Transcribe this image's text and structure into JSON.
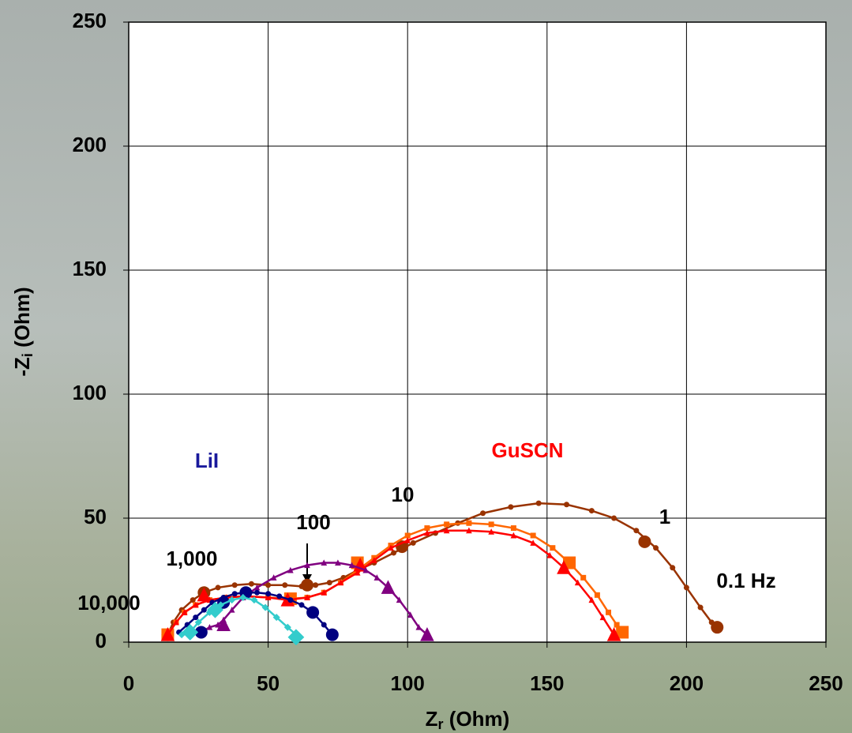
{
  "chart_data": {
    "type": "line",
    "x_label": [
      "Z",
      "r",
      " (Ohm)"
    ],
    "y_label": [
      "-Z",
      "i",
      " (Ohm)"
    ],
    "xlim": [
      0,
      250
    ],
    "ylim": [
      0,
      250
    ],
    "xticks": [
      0,
      50,
      100,
      150,
      200,
      250
    ],
    "yticks": [
      0,
      50,
      100,
      150,
      200,
      250
    ],
    "grid": true,
    "annotations": [
      {
        "text": "LiI",
        "color": "#1a1a9c"
      },
      {
        "text": "GuSCN",
        "color": "#ff0000"
      },
      {
        "text": "10",
        "color": "#000000"
      },
      {
        "text": "100",
        "color": "#000000"
      },
      {
        "text": "1,000",
        "color": "#000000"
      },
      {
        "text": "10,000",
        "color": "#000000"
      },
      {
        "text": "1",
        "color": "#000000"
      },
      {
        "text": "0.1 Hz",
        "color": "#000000"
      }
    ],
    "series": [
      {
        "color": "#993300",
        "marker": "circle",
        "x": [
          14,
          16,
          19,
          23,
          27,
          32,
          38,
          44,
          50,
          56,
          62,
          67,
          72,
          77,
          82,
          88,
          95,
          102,
          110,
          118,
          127,
          137,
          147,
          157,
          166,
          174,
          182,
          189,
          195,
          200,
          205,
          209,
          211
        ],
        "values": [
          3,
          8,
          13,
          17,
          20,
          22,
          23,
          23.5,
          23,
          23,
          22.5,
          23,
          24,
          26,
          29,
          32,
          36,
          40,
          44,
          48,
          52,
          54.5,
          56,
          55.5,
          53,
          50,
          45,
          38,
          30,
          22,
          14,
          8,
          6
        ],
        "marker_x": [
          14,
          27,
          64,
          98,
          185,
          211
        ],
        "marker_values": [
          3,
          20,
          23,
          38.5,
          40.5,
          6
        ]
      },
      {
        "color": "#ff6600",
        "marker": "square",
        "x": [
          14,
          17,
          20,
          24,
          29,
          35,
          42,
          50,
          58,
          64,
          70,
          76,
          82,
          88,
          94,
          100,
          107,
          114,
          122,
          130,
          138,
          145,
          152,
          158,
          163,
          168,
          172,
          175,
          177
        ],
        "values": [
          3,
          8,
          12,
          15,
          17,
          18,
          18.5,
          18,
          17.5,
          18,
          20,
          24,
          29,
          34,
          39,
          43,
          46,
          47.5,
          48,
          47.5,
          46,
          43,
          38,
          32,
          26,
          19,
          12,
          7,
          4
        ],
        "marker_x": [
          14,
          58,
          82,
          158,
          177
        ],
        "marker_values": [
          3,
          17.5,
          32,
          32,
          4
        ]
      },
      {
        "color": "#ff0000",
        "marker": "triangle",
        "x": [
          14,
          17,
          20,
          24,
          29,
          35,
          42,
          50,
          57,
          64,
          70,
          76,
          82,
          88,
          94,
          100,
          107,
          114,
          122,
          130,
          138,
          145,
          151,
          156,
          161,
          166,
          170,
          174
        ],
        "values": [
          3,
          8,
          12,
          15,
          17,
          18,
          18.5,
          18,
          17,
          18,
          20,
          24,
          28,
          33,
          38,
          41,
          44,
          45,
          45,
          44.5,
          43,
          40,
          35,
          30,
          24,
          17,
          10,
          3
        ],
        "marker_x": [
          14,
          27,
          57,
          83,
          156,
          174
        ],
        "marker_values": [
          3,
          19,
          17,
          31,
          30,
          3
        ]
      },
      {
        "color": "#800080",
        "marker": "triangle",
        "x": [
          26,
          29,
          32,
          34,
          37,
          41,
          46,
          52,
          58,
          64,
          70,
          75,
          80,
          85,
          89,
          93,
          97,
          101,
          104,
          107
        ],
        "values": [
          4,
          6,
          7,
          9,
          13,
          18,
          22,
          26,
          29,
          31,
          32,
          32,
          31,
          29,
          26,
          22,
          17,
          11,
          6,
          3
        ],
        "marker_x": [
          34,
          93,
          107
        ],
        "marker_values": [
          7,
          22,
          3
        ]
      },
      {
        "color": "#000080",
        "marker": "circle",
        "x": [
          18,
          21,
          24,
          27,
          30,
          34,
          38,
          42,
          46,
          50,
          54,
          58,
          62,
          66,
          70,
          73
        ],
        "values": [
          4,
          7,
          10,
          13,
          16,
          18,
          19.5,
          20,
          20,
          19.5,
          18.5,
          17,
          15,
          12,
          7,
          3
        ],
        "marker_x": [
          26,
          34,
          42,
          66,
          73
        ],
        "marker_values": [
          4,
          16,
          20,
          12,
          3
        ]
      },
      {
        "color": "#33cccc",
        "marker": "diamond",
        "x": [
          19,
          22,
          25,
          29,
          33,
          37,
          41,
          45,
          49,
          53,
          57,
          60,
          61
        ],
        "values": [
          3,
          4,
          8,
          12,
          15,
          17,
          18,
          17,
          14,
          10,
          6,
          3,
          2
        ],
        "marker_x": [
          22,
          31,
          60
        ],
        "marker_values": [
          4,
          13,
          2
        ]
      }
    ]
  }
}
